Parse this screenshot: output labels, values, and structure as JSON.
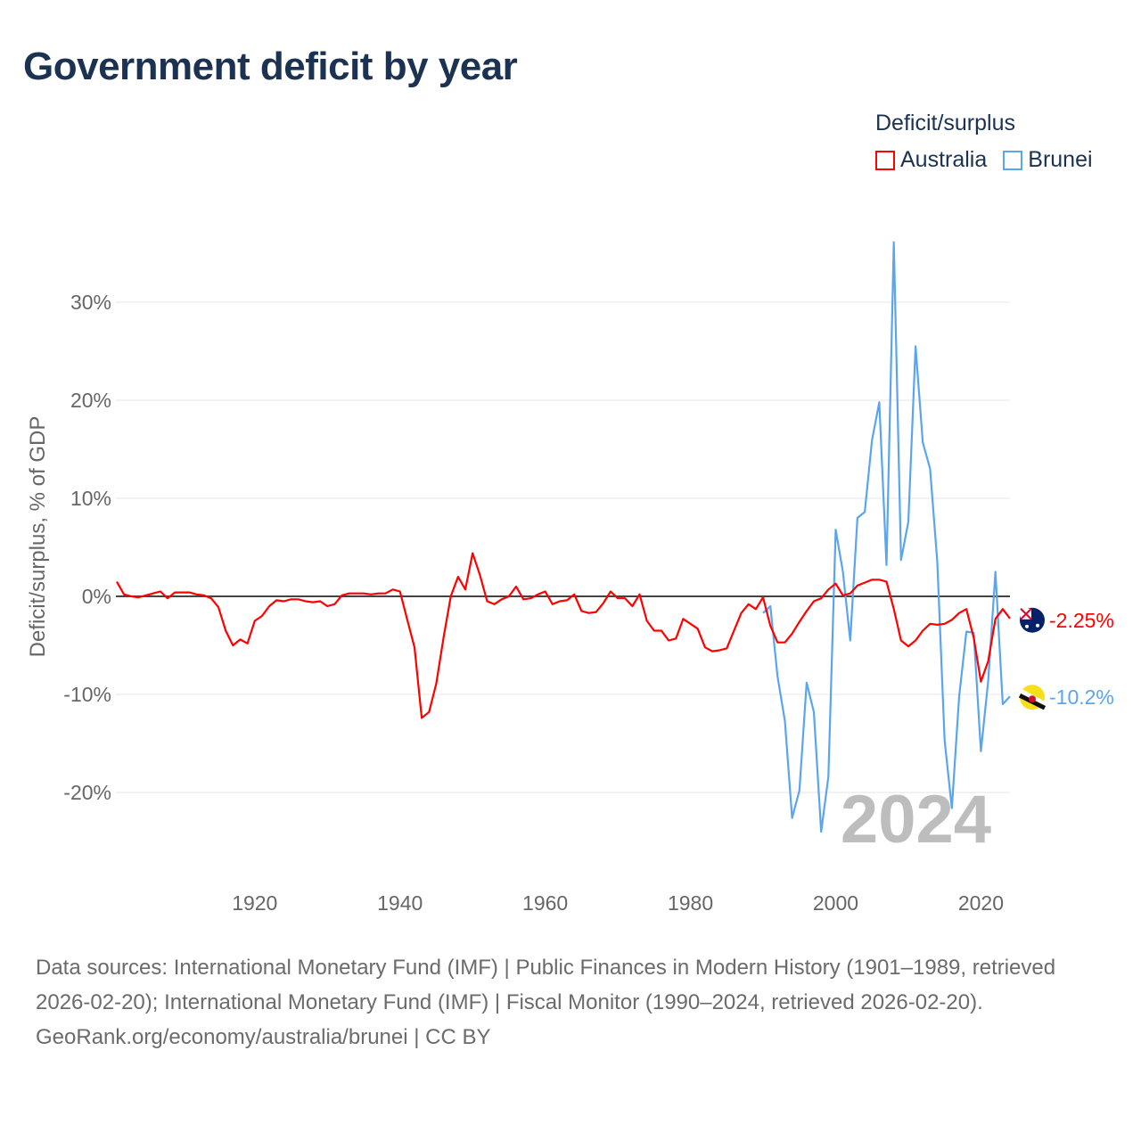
{
  "title": "Government deficit by year",
  "legend": {
    "title": "Deficit/surplus",
    "items": [
      {
        "label": "Australia",
        "color": "#ff0000"
      },
      {
        "label": "Brunei",
        "color": "#5aa5ee"
      }
    ]
  },
  "footer": {
    "sources": "Data sources: International Monetary Fund (IMF) | Public Finances in Modern History (1901–1989, retrieved 2026-02-20); International Monetary Fund (IMF) | Fiscal Monitor (1990–2024, retrieved 2026-02-20).",
    "credit": "GeoRank.org/economy/australia/brunei | CC BY"
  },
  "chart_data": {
    "type": "line",
    "title": "Government deficit by year",
    "ylabel": "Deficit/surplus, % of GDP",
    "xlabel": "",
    "xlim": [
      1901,
      2024
    ],
    "ylim": [
      -26,
      37
    ],
    "x_ticks": [
      1920,
      1940,
      1960,
      1980,
      2000,
      2020
    ],
    "x_tick_labels": [
      "1920",
      "1940",
      "1960",
      "1980",
      "2000",
      "2020"
    ],
    "y_ticks": [
      -20,
      -10,
      0,
      10,
      20,
      30
    ],
    "y_tick_labels": [
      "-20%",
      "-10%",
      "0%",
      "10%",
      "20%",
      "30%"
    ],
    "grid": true,
    "legend_position": "top-right",
    "year_watermark": "2024",
    "series": [
      {
        "name": "Australia",
        "color": "#ff0000",
        "start_year": 1901,
        "end_label": "-2.25%",
        "values": [
          1.5,
          0.2,
          0,
          -0.1,
          0.1,
          0.3,
          0.5,
          -0.2,
          0.4,
          0.4,
          0.4,
          0.2,
          0.1,
          -0.2,
          -1.1,
          -3.5,
          -5.0,
          -4.4,
          -4.8,
          -2.5,
          -2.0,
          -1.0,
          -0.4,
          -0.5,
          -0.3,
          -0.3,
          -0.5,
          -0.6,
          -0.5,
          -1.0,
          -0.8,
          0.1,
          0.3,
          0.3,
          0.3,
          0.2,
          0.3,
          0.3,
          0.7,
          0.5,
          -2.4,
          -5.2,
          -12.4,
          -11.8,
          -8.9,
          -4.2,
          0,
          2.0,
          0.7,
          4.4,
          2.2,
          -0.5,
          -0.8,
          -0.3,
          0,
          1.0,
          -0.3,
          -0.2,
          0.2,
          0.5,
          -0.8,
          -0.5,
          -0.4,
          0.2,
          -1.5,
          -1.7,
          -1.6,
          -0.7,
          0.5,
          -0.2,
          -0.2,
          -1.0,
          0.2,
          -2.5,
          -3.5,
          -3.5,
          -4.5,
          -4.3,
          -2.3,
          -2.8,
          -3.3,
          -5.2,
          -5.6,
          -5.5,
          -5.3,
          -3.5,
          -1.7,
          -0.8,
          -1.3,
          -0.1,
          -3.0,
          -4.7,
          -4.7,
          -3.8,
          -2.6,
          -1.5,
          -0.5,
          -0.2,
          0.7,
          1.3,
          0.1,
          0.3,
          1.1,
          1.4,
          1.7,
          1.7,
          1.5,
          -1.3,
          -4.5,
          -5.1,
          -4.5,
          -3.5,
          -2.8,
          -2.9,
          -2.8,
          -2.4,
          -1.7,
          -1.3,
          -4.2,
          -8.7,
          -6.6,
          -2.3,
          -1.3,
          -2.25
        ]
      },
      {
        "name": "Brunei",
        "color": "#5aa5ee",
        "start_year": 1990,
        "end_label": "-10.2%",
        "values": [
          -1.7,
          -1.0,
          -8.2,
          -12.7,
          -22.6,
          -19.8,
          -8.8,
          -11.8,
          -24.0,
          -18.4,
          6.8,
          2.5,
          -4.5,
          8.0,
          8.6,
          15.9,
          19.8,
          3.2,
          36.1,
          3.7,
          7.6,
          25.5,
          15.7,
          13.0,
          3.5,
          -14.7,
          -21.6,
          -10.2,
          -3.6,
          -3.7,
          -15.8,
          -8.6,
          2.5,
          -11.0,
          -10.2
        ]
      }
    ]
  }
}
